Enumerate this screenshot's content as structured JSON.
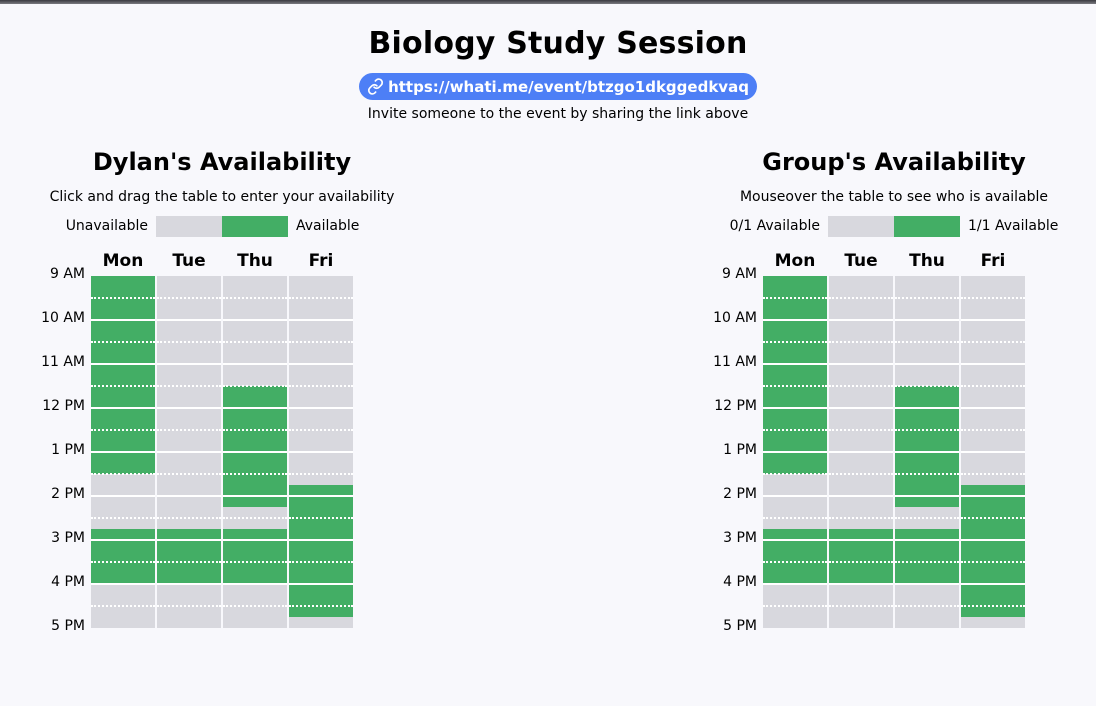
{
  "event": {
    "title": "Biology Study Session",
    "link": "https://whati.me/event/btzgo1dkggedkvaq",
    "invite_text": "Invite someone to the event by sharing the link above",
    "link_icon": "link-icon"
  },
  "personal": {
    "title": "Dylan's Availability",
    "subtitle": "Click and drag the table to enter your availability",
    "legend": {
      "unavailable": "Unavailable",
      "available": "Available"
    }
  },
  "group": {
    "title": "Group's Availability",
    "subtitle": "Mouseover the table to see who is available",
    "legend": {
      "unavailable": "0/1 Available",
      "available": "1/1 Available"
    }
  },
  "days": [
    "Mon",
    "Tue",
    "Thu",
    "Fri"
  ],
  "times": [
    "9 AM",
    "10 AM",
    "11 AM",
    "12 PM",
    "1 PM",
    "2 PM",
    "3 PM",
    "4 PM",
    "5 PM"
  ],
  "schedule": {
    "start_hour": 9,
    "end_hour": 17,
    "availability": {
      "Mon": [
        [
          9.0,
          13.5
        ],
        [
          14.75,
          16.0
        ]
      ],
      "Tue": [
        [
          14.75,
          16.0
        ]
      ],
      "Thu": [
        [
          11.5,
          14.25
        ],
        [
          14.75,
          16.0
        ]
      ],
      "Fri": [
        [
          13.75,
          16.75
        ]
      ]
    }
  },
  "colors": {
    "available": "#43ae65",
    "unavailable": "#d8d8de",
    "link_pill": "#4d7ff6",
    "background": "#f8f8fc"
  }
}
